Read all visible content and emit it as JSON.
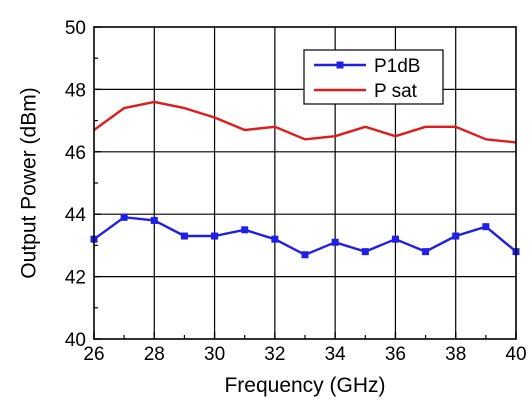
{
  "chart_data": {
    "type": "line",
    "title": "",
    "xlabel": "Frequency  (GHz)",
    "ylabel": "Output Power  (dBm)",
    "xlim": [
      26,
      40
    ],
    "ylim": [
      40,
      50
    ],
    "x_ticks": [
      26,
      28,
      30,
      32,
      34,
      36,
      38,
      40
    ],
    "y_ticks": [
      40,
      42,
      44,
      46,
      48,
      50
    ],
    "grid": true,
    "legend_position": "top-right",
    "x": [
      26,
      27,
      28,
      29,
      30,
      31,
      32,
      33,
      34,
      35,
      36,
      37,
      38,
      39,
      40
    ],
    "series": [
      {
        "name": "P1dB",
        "color": "#1f1fe6",
        "marker": "square",
        "values": [
          43.2,
          43.9,
          43.8,
          43.3,
          43.3,
          43.5,
          43.2,
          42.7,
          43.1,
          42.8,
          43.2,
          42.8,
          43.3,
          43.6,
          42.8
        ]
      },
      {
        "name": "P sat",
        "color": "#e01b1b",
        "marker": "none",
        "values": [
          46.7,
          47.4,
          47.6,
          47.4,
          47.1,
          46.7,
          46.8,
          46.4,
          46.5,
          46.8,
          46.5,
          46.8,
          46.8,
          46.4,
          46.3
        ]
      }
    ]
  }
}
